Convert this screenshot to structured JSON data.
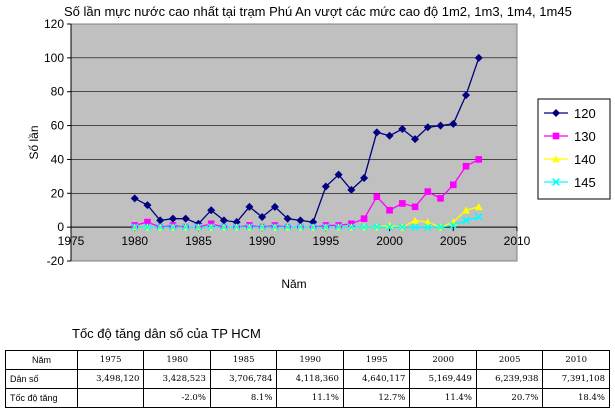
{
  "chart_data": [
    {
      "type": "line",
      "title": "Số lần mực nước cao nhất tại trạm Phú An vượt các mức cao độ 1m2, 1m3, 1m4, 1m45",
      "xlabel": "Năm",
      "ylabel": "Số lần",
      "xlim": [
        1975,
        2010
      ],
      "ylim": [
        -20,
        120
      ],
      "xticks": [
        1975,
        1980,
        1985,
        1990,
        1995,
        2000,
        2005,
        2010
      ],
      "yticks": [
        -20,
        0,
        20,
        40,
        60,
        80,
        100,
        120
      ],
      "grid": "horizontal",
      "legend_position": "right",
      "background": "#c0c0c0",
      "series": [
        {
          "name": "120",
          "color": "#000080",
          "marker": "diamond",
          "x": [
            1980,
            1981,
            1982,
            1983,
            1984,
            1985,
            1986,
            1987,
            1988,
            1989,
            1990,
            1991,
            1992,
            1993,
            1994,
            1995,
            1996,
            1997,
            1998,
            1999,
            2000,
            2001,
            2002,
            2003,
            2004,
            2005,
            2006,
            2007
          ],
          "values": [
            17,
            13,
            4,
            5,
            5,
            2,
            10,
            4,
            3,
            12,
            6,
            12,
            5,
            4,
            3,
            24,
            31,
            22,
            29,
            56,
            54,
            58,
            52,
            59,
            60,
            61,
            78,
            100
          ]
        },
        {
          "name": "130",
          "color": "#ff00ff",
          "marker": "square",
          "x": [
            1980,
            1981,
            1982,
            1983,
            1984,
            1985,
            1986,
            1987,
            1988,
            1989,
            1990,
            1991,
            1992,
            1993,
            1994,
            1995,
            1996,
            1997,
            1998,
            1999,
            2000,
            2001,
            2002,
            2003,
            2004,
            2005,
            2006,
            2007
          ],
          "values": [
            1,
            3,
            0,
            1,
            0,
            0,
            2,
            0,
            0,
            1,
            0,
            1,
            0,
            0,
            0,
            1,
            1,
            2,
            5,
            18,
            10,
            14,
            12,
            21,
            17,
            25,
            36,
            40
          ]
        },
        {
          "name": "140",
          "color": "#ffff00",
          "marker": "triangle",
          "x": [
            1980,
            1981,
            1982,
            1983,
            1984,
            1985,
            1986,
            1987,
            1988,
            1989,
            1990,
            1991,
            1992,
            1993,
            1994,
            1995,
            1996,
            1997,
            1998,
            1999,
            2000,
            2001,
            2002,
            2003,
            2004,
            2005,
            2006,
            2007
          ],
          "values": [
            0,
            0,
            0,
            0,
            0,
            0,
            0,
            0,
            0,
            0,
            0,
            0,
            0,
            0,
            0,
            0,
            0,
            0,
            0,
            0,
            1,
            0,
            4,
            3,
            0,
            3,
            10,
            12
          ]
        },
        {
          "name": "145",
          "color": "#00ffff",
          "marker": "x",
          "x": [
            1980,
            1981,
            1982,
            1983,
            1984,
            1985,
            1986,
            1987,
            1988,
            1989,
            1990,
            1991,
            1992,
            1993,
            1994,
            1995,
            1996,
            1997,
            1998,
            1999,
            2000,
            2001,
            2002,
            2003,
            2004,
            2005,
            2006,
            2007
          ],
          "values": [
            0,
            0,
            0,
            0,
            0,
            0,
            0,
            0,
            0,
            0,
            0,
            0,
            0,
            0,
            0,
            0,
            0,
            0,
            0,
            0,
            0,
            0,
            0,
            0,
            0,
            1,
            4,
            6
          ]
        }
      ]
    },
    {
      "type": "table",
      "title": "Tốc độ tăng dân số của TP HCM",
      "columns": [
        "Năm",
        "1975",
        "1980",
        "1985",
        "1990",
        "1995",
        "2000",
        "2005",
        "2010"
      ],
      "rows": [
        [
          "Dân số",
          "3,498,120",
          "3,428,523",
          "3,706,784",
          "4,118,360",
          "4,640,117",
          "5,169,449",
          "6,239,938",
          "7,391,108"
        ],
        [
          "Tốc độ tăng",
          "",
          "-2.0%",
          "8.1%",
          "11.1%",
          "12.7%",
          "11.4%",
          "20.7%",
          "18.4%"
        ]
      ]
    }
  ]
}
